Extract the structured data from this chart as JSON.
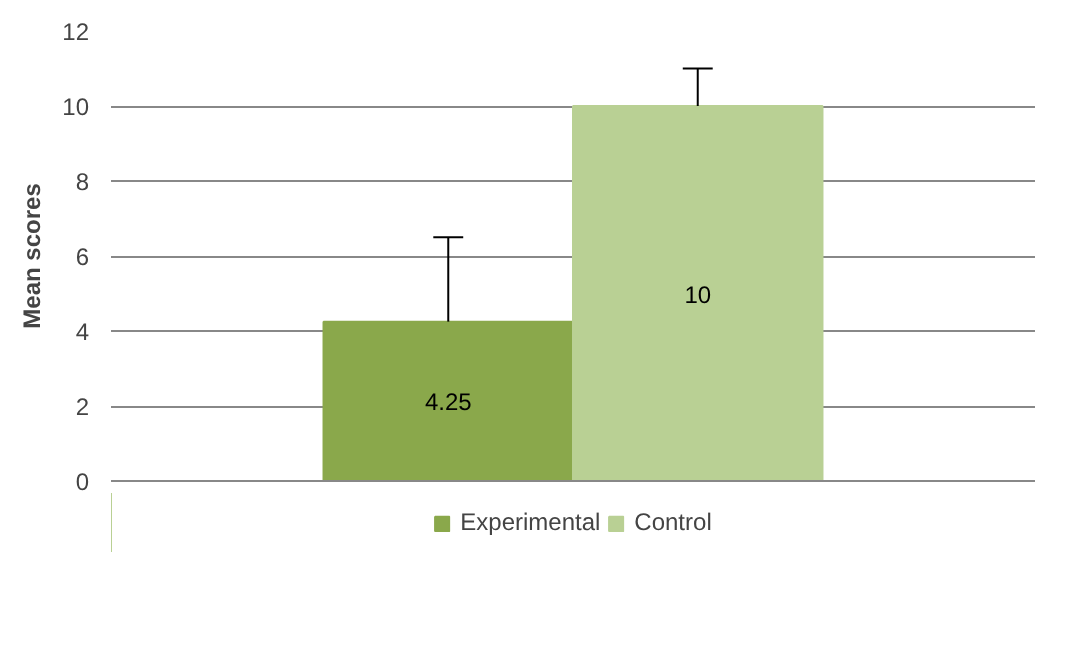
{
  "chart_data": {
    "type": "bar",
    "ylabel": "Mean scores",
    "categories": [
      null
    ],
    "series": [
      {
        "name": "Experimental",
        "color": "#8aa84b",
        "values": [
          4.25
        ],
        "errors": [
          [
            4.25,
            6.5
          ]
        ]
      },
      {
        "name": "Control",
        "color": "#b9d094",
        "values": [
          10
        ],
        "errors": [
          [
            10,
            11
          ]
        ]
      }
    ],
    "ylim": [
      0,
      12
    ],
    "yticks": [
      0,
      2,
      4,
      6,
      8,
      10,
      12
    ],
    "grid": "y",
    "legend": "bottom",
    "data_labels": true
  }
}
